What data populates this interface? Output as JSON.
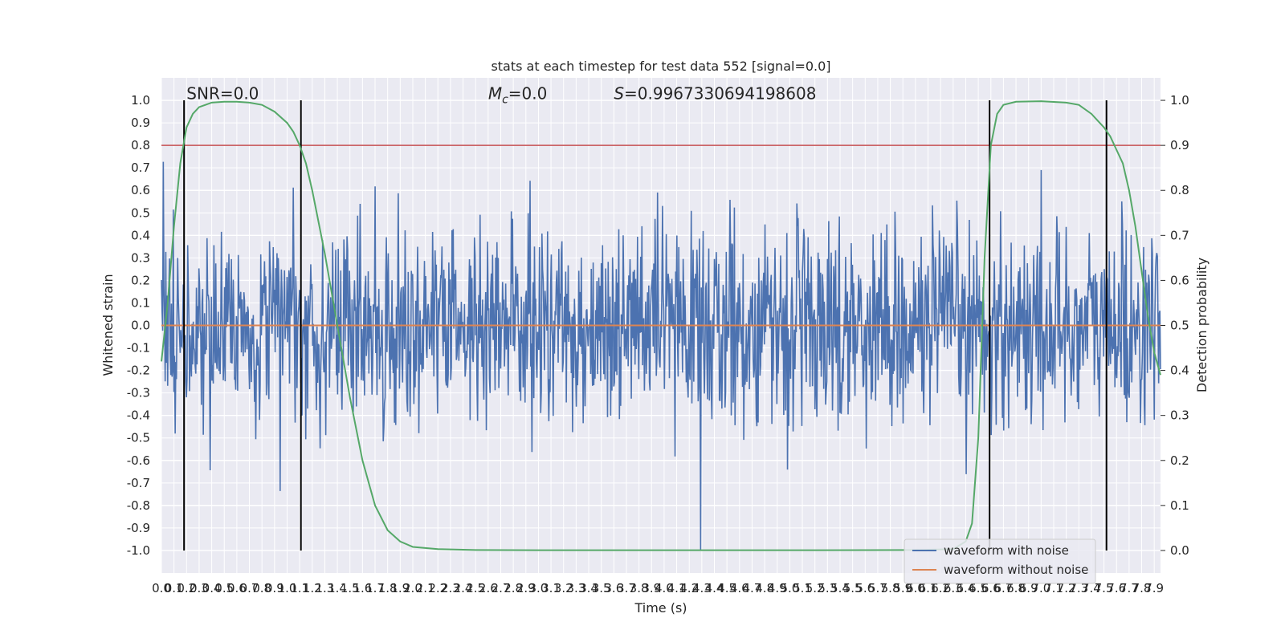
{
  "chart_data": {
    "type": "line",
    "title": "stats at each timestep for test data 552 [signal=0.0]",
    "xlabel": "Time (s)",
    "ylabel_left": "Whitened strain",
    "ylabel_right": "Detection probability",
    "xlim": [
      0.0,
      7.95
    ],
    "ylim_left": [
      -1.1,
      1.1
    ],
    "ylim_right": [
      -0.05,
      1.05
    ],
    "x_ticks": [
      "0.0",
      "0.1",
      "0.2",
      "0.3",
      "0.4",
      "0.5",
      "0.6",
      "0.7",
      "0.8",
      "0.9",
      "1.0",
      "1.1",
      "1.2",
      "1.3",
      "1.4",
      "1.5",
      "1.6",
      "1.7",
      "1.8",
      "1.9",
      "2.0",
      "2.1",
      "2.2",
      "2.3",
      "2.4",
      "2.5",
      "2.6",
      "2.7",
      "2.8",
      "2.9",
      "3.0",
      "3.1",
      "3.2",
      "3.3",
      "3.4",
      "3.5",
      "3.6",
      "3.7",
      "3.8",
      "3.9",
      "4.0",
      "4.1",
      "4.2",
      "4.3",
      "4.4",
      "4.5",
      "4.6",
      "4.7",
      "4.8",
      "4.9",
      "5.0",
      "5.1",
      "5.2",
      "5.3",
      "5.4",
      "5.5",
      "5.6",
      "5.7",
      "5.8",
      "5.9",
      "6.0",
      "6.1",
      "6.2",
      "6.3",
      "6.4",
      "6.5",
      "6.6",
      "6.7",
      "6.8",
      "6.9",
      "7.0",
      "7.1",
      "7.2",
      "7.3",
      "7.4",
      "7.5",
      "7.6",
      "7.7",
      "7.8",
      "7.9"
    ],
    "y_ticks_left": [
      "-1.0",
      "-0.9",
      "-0.8",
      "-0.7",
      "-0.6",
      "-0.5",
      "-0.4",
      "-0.3",
      "-0.2",
      "-0.1",
      "0.0",
      "0.1",
      "0.2",
      "0.3",
      "0.4",
      "0.5",
      "0.6",
      "0.7",
      "0.8",
      "0.9",
      "1.0"
    ],
    "y_ticks_right": [
      "0.0",
      "0.1",
      "0.2",
      "0.3",
      "0.4",
      "0.5",
      "0.6",
      "0.7",
      "0.8",
      "0.9",
      "1.0"
    ],
    "threshold": 0.9,
    "vertical_lines_x": [
      0.18,
      1.11,
      6.59,
      7.52
    ],
    "annotations": [
      {
        "text": "SNR=0.0",
        "x": 0.2,
        "y": 1.03
      },
      {
        "text": "=0.0",
        "math_symbol": "M",
        "math_sub": "c",
        "x": 2.6,
        "y": 1.03
      },
      {
        "text": "=0.9967330694198608",
        "math_symbol": "S",
        "x": 3.6,
        "y": 1.03
      }
    ],
    "series": [
      {
        "name": "waveform with noise",
        "color": "#4c72b0",
        "description_values": "dense gaussian noise samples, mostly within -0.6..0.6 with peaks near +/-1.0",
        "noise_seed": 552,
        "sigma": 0.22,
        "n_samples": 1600
      },
      {
        "name": "waveform without noise",
        "color": "#dd8452",
        "x": [
          0.0,
          7.95
        ],
        "y": [
          0.0,
          0.0
        ]
      },
      {
        "name": "detection probability",
        "color": "#55a868",
        "axis": "right",
        "x": [
          0.0,
          0.05,
          0.1,
          0.15,
          0.2,
          0.25,
          0.3,
          0.35,
          0.4,
          0.5,
          0.6,
          0.7,
          0.8,
          0.9,
          1.0,
          1.05,
          1.1,
          1.15,
          1.2,
          1.3,
          1.4,
          1.5,
          1.6,
          1.7,
          1.8,
          1.9,
          2.0,
          2.2,
          2.5,
          3.0,
          4.0,
          5.0,
          6.0,
          6.3,
          6.4,
          6.45,
          6.5,
          6.55,
          6.6,
          6.65,
          6.7,
          6.8,
          7.0,
          7.2,
          7.3,
          7.4,
          7.45,
          7.5,
          7.55,
          7.6,
          7.65,
          7.7,
          7.75,
          7.8,
          7.85,
          7.9,
          7.95
        ],
        "y": [
          0.42,
          0.55,
          0.72,
          0.86,
          0.94,
          0.97,
          0.985,
          0.99,
          0.995,
          0.997,
          0.997,
          0.995,
          0.99,
          0.975,
          0.95,
          0.93,
          0.9,
          0.86,
          0.8,
          0.66,
          0.5,
          0.34,
          0.2,
          0.1,
          0.045,
          0.02,
          0.008,
          0.003,
          0.001,
          0.0005,
          0.0005,
          0.0005,
          0.001,
          0.003,
          0.02,
          0.06,
          0.25,
          0.65,
          0.9,
          0.97,
          0.99,
          0.997,
          0.998,
          0.995,
          0.99,
          0.97,
          0.955,
          0.94,
          0.92,
          0.89,
          0.86,
          0.8,
          0.72,
          0.62,
          0.52,
          0.44,
          0.39
        ]
      }
    ],
    "legend": {
      "placement": "lower-right",
      "entries": [
        {
          "label": "waveform with noise",
          "color": "#4c72b0"
        },
        {
          "label": "waveform without noise",
          "color": "#dd8452"
        }
      ]
    },
    "colors": {
      "background": "#eaeaf2",
      "grid": "#ffffff",
      "threshold": "#c44e52",
      "vertical": "#000000"
    }
  }
}
